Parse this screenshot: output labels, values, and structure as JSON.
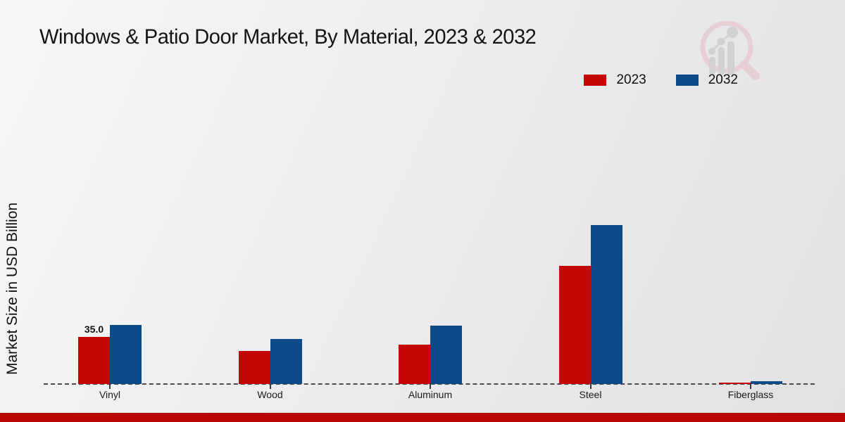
{
  "title": "Windows & Patio Door Market, By Material, 2023 & 2032",
  "y_axis_label": "Market Size in USD Billion",
  "legend": {
    "items": [
      {
        "label": "2023",
        "color": "#c40606"
      },
      {
        "label": "2032",
        "color": "#0c4a89"
      }
    ]
  },
  "branding": {
    "logo_icon": "magnifier-bar-chart-logo",
    "footer_color": "#b90707",
    "logo_ring_color": "#e7d0d3",
    "logo_bar_color": "#d2d2d5"
  },
  "chart_data": {
    "type": "bar",
    "title": "Windows & Patio Door Market, By Material, 2023 & 2032",
    "ylabel": "Market Size in USD Billion",
    "xlabel": "",
    "categories": [
      "Vinyl",
      "Wood",
      "Aluminum",
      "Steel",
      "Fiberglass"
    ],
    "series": [
      {
        "name": "2023",
        "color": "#c40606",
        "values": [
          35.0,
          24.5,
          29.2,
          88.0,
          1.0
        ]
      },
      {
        "name": "2032",
        "color": "#0c4a89",
        "values": [
          44.0,
          33.6,
          43.8,
          118.5,
          2.0
        ]
      }
    ],
    "annotations": [
      {
        "category": "Vinyl",
        "series": "2023",
        "text": "35.0"
      }
    ],
    "ylim": [
      0,
      130
    ],
    "grid": false,
    "baseline_style": "dashed",
    "legend_position": "top-right",
    "y_ticks_visible": false
  }
}
